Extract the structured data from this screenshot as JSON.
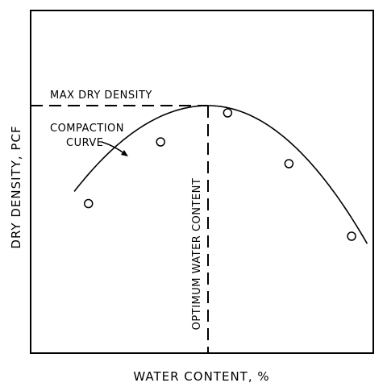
{
  "chart_data": {
    "type": "line",
    "title": "",
    "xlabel": "WATER CONTENT, %",
    "ylabel": "DRY DENSITY, PCF",
    "xlim": [
      0,
      100
    ],
    "ylim": [
      0,
      100
    ],
    "grid": false,
    "legend": "none",
    "series": [
      {
        "points": [
          {
            "x": 14.7,
            "y": 59.5
          },
          {
            "x": 36.0,
            "y": 85.0
          },
          {
            "x": 55.8,
            "y": 97.0
          },
          {
            "x": 73.9,
            "y": 76.0
          },
          {
            "x": 92.4,
            "y": 46.0
          }
        ]
      }
    ],
    "curve": {
      "peak": {
        "x": 50.0,
        "y": 100.0
      },
      "x_range": [
        10.5,
        97.0
      ],
      "left_coef": 0.02275,
      "right_coef": 0.02583
    },
    "annotations": {
      "max_dry_density": "MAX DRY DENSITY",
      "compaction_curve_line1": "COMPACTION",
      "compaction_curve_line2": "CURVE",
      "optimum_water_content": "OPTIMUM WATER CONTENT"
    }
  }
}
